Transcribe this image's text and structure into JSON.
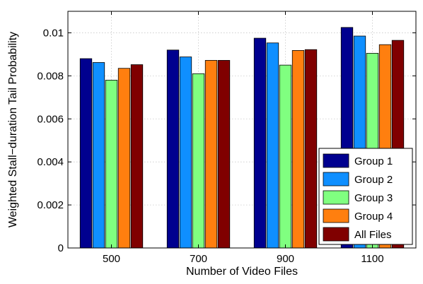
{
  "chart_data": {
    "type": "bar",
    "title": "",
    "xlabel": "Number of Video Files",
    "ylabel": "Weighted Stall−duration Tail Probability",
    "categories": [
      "500",
      "700",
      "900",
      "1100"
    ],
    "ylim": [
      0,
      0.011
    ],
    "yticks": [
      0,
      0.002,
      0.004,
      0.006,
      0.008,
      0.01
    ],
    "ytick_labels": [
      "0",
      "0.002",
      "0.004",
      "0.006",
      "0.008",
      "0.01"
    ],
    "grid": true,
    "legend_position": "bottom-right",
    "series": [
      {
        "name": "Group 1",
        "color": "#00008f",
        "values": [
          0.0088,
          0.0092,
          0.00975,
          0.01025
        ]
      },
      {
        "name": "Group 2",
        "color": "#0f8fff",
        "values": [
          0.00862,
          0.00888,
          0.00953,
          0.00985
        ]
      },
      {
        "name": "Group 3",
        "color": "#80ff80",
        "values": [
          0.0078,
          0.0081,
          0.0085,
          0.00905
        ]
      },
      {
        "name": "Group 4",
        "color": "#ff7f0f",
        "values": [
          0.00835,
          0.00872,
          0.00918,
          0.00945
        ]
      },
      {
        "name": "All Files",
        "color": "#800000",
        "values": [
          0.00852,
          0.00872,
          0.00922,
          0.00965
        ]
      }
    ]
  }
}
